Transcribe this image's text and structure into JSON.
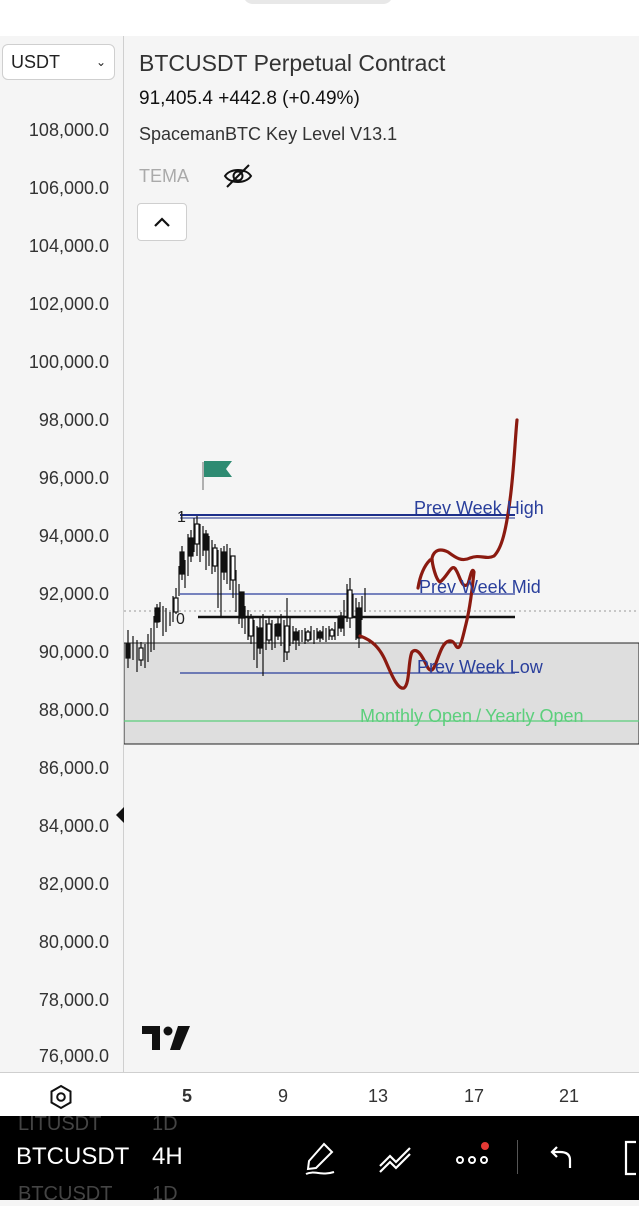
{
  "header": {
    "symbol_select": "USDT",
    "title": "BTCUSDT Perpetual Contract",
    "price_line": "91,405.4 +442.8 (+0.49%)",
    "indicator": "SpacemanBTC Key Level V13.1",
    "tema": "TEMA"
  },
  "y_axis": [
    "108,000.0",
    "106,000.0",
    "104,000.0",
    "102,000.0",
    "100,000.0",
    "98,000.0",
    "96,000.0",
    "94,000.0",
    "92,000.0",
    "90,000.0",
    "88,000.0",
    "86,000.0",
    "84,000.0",
    "82,000.0",
    "80,000.0",
    "78,000.0",
    "76,000.0"
  ],
  "x_axis": [
    "5",
    "9",
    "13",
    "17",
    "21"
  ],
  "levels": {
    "high": "Prev Week High",
    "mid": "Prev Week Mid",
    "low": "Prev Week Low",
    "monthly": "Monthly Open",
    "separator": "/",
    "yearly": "Yearly Open",
    "fib_one": "1",
    "fib_zero": "0"
  },
  "toolbar": {
    "symbol": "BTCUSDT",
    "timeframe": "4H",
    "ghost_top": "LITUSDT",
    "ghost_top_tf": "1D",
    "ghost_bottom": "BTCUSDT",
    "ghost_bottom_tf": "1D"
  },
  "colors": {
    "level_blue": "#2a3f9c",
    "monthly_green": "#5ccf7c",
    "drawing_red": "#8b1a10",
    "flag_teal": "#2e8b72",
    "notification_red": "#e53935"
  }
}
